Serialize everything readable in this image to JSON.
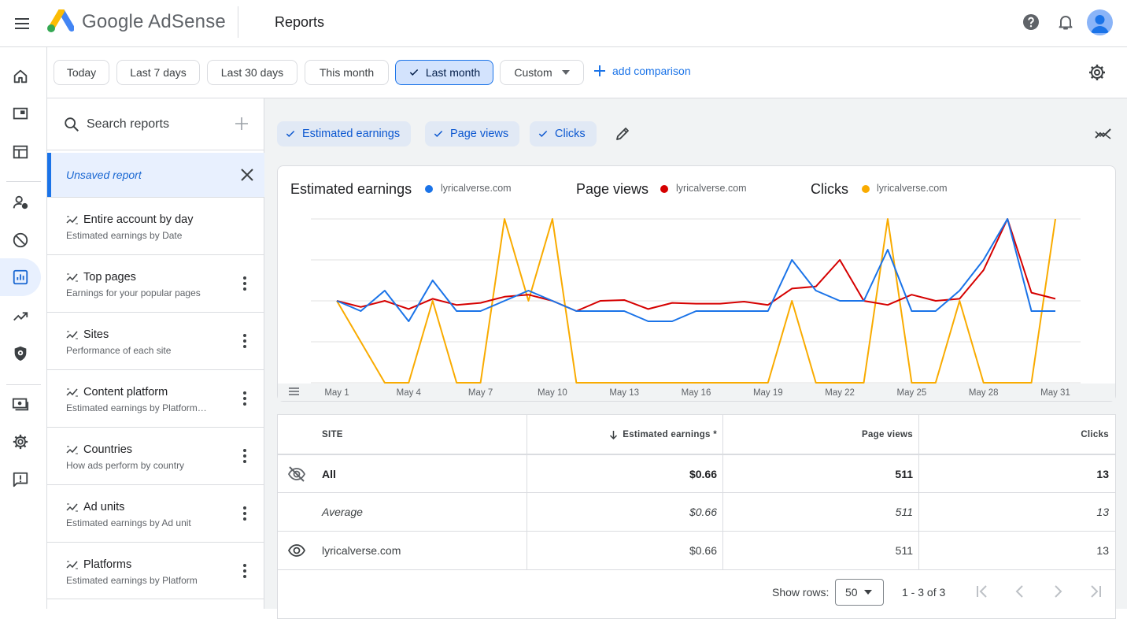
{
  "header": {
    "brand": "Google AdSense",
    "page_title": "Reports"
  },
  "rail": [
    "home-icon",
    "ads-icon",
    "sites-icon",
    "privacy-messaging-icon",
    "blocking-controls-icon",
    "reports-icon",
    "optimization-icon",
    "policy-center-icon",
    "payments-icon",
    "settings-icon",
    "feedback-icon"
  ],
  "filters": {
    "chips": [
      "Today",
      "Last 7 days",
      "Last 30 days",
      "This month",
      "Last month"
    ],
    "selected": "Last month",
    "custom_label": "Custom",
    "add_comparison": "add comparison"
  },
  "sidebar": {
    "search_placeholder": "Search reports",
    "unsaved": "Unsaved report",
    "reports": [
      {
        "title": "Entire account by day",
        "subtitle": "Estimated earnings by Date"
      },
      {
        "title": "Top pages",
        "subtitle": "Earnings for your popular pages"
      },
      {
        "title": "Sites",
        "subtitle": "Performance of each site"
      },
      {
        "title": "Content platform",
        "subtitle": "Estimated earnings by Platform…"
      },
      {
        "title": "Countries",
        "subtitle": "How ads perform by country"
      },
      {
        "title": "Ad units",
        "subtitle": "Estimated earnings by Ad unit"
      },
      {
        "title": "Platforms",
        "subtitle": "Estimated earnings by Platform"
      }
    ]
  },
  "metric_chips": [
    "Estimated earnings",
    "Page views",
    "Clicks"
  ],
  "chart": {
    "legend": [
      {
        "metric": "Estimated earnings",
        "site": "lyricalverse.com",
        "color": "#1a73e8"
      },
      {
        "metric": "Page views",
        "site": "lyricalverse.com",
        "color": "#d50000"
      },
      {
        "metric": "Clicks",
        "site": "lyricalverse.com",
        "color": "#f9ab00"
      }
    ]
  },
  "chart_data": {
    "type": "line",
    "x_tick_labels": [
      "May 1",
      "May 4",
      "May 7",
      "May 10",
      "May 13",
      "May 16",
      "May 19",
      "May 22",
      "May 25",
      "May 28",
      "May 31"
    ],
    "x": [
      "May 1",
      "May 2",
      "May 3",
      "May 4",
      "May 5",
      "May 6",
      "May 7",
      "May 8",
      "May 9",
      "May 10",
      "May 11",
      "May 12",
      "May 13",
      "May 14",
      "May 15",
      "May 16",
      "May 17",
      "May 18",
      "May 19",
      "May 20",
      "May 21",
      "May 22",
      "May 23",
      "May 24",
      "May 25",
      "May 26",
      "May 27",
      "May 28",
      "May 29",
      "May 30",
      "May 31"
    ],
    "ylim": [
      0,
      4
    ],
    "grid": true,
    "series": [
      {
        "name": "Estimated earnings",
        "color": "#1a73e8",
        "values": [
          2,
          1.75,
          2.25,
          1.5,
          2.5,
          1.75,
          1.75,
          2,
          2.25,
          2,
          1.75,
          1.75,
          1.75,
          1.5,
          1.5,
          1.75,
          1.75,
          1.75,
          1.75,
          3,
          2.25,
          2,
          2,
          3.25,
          1.75,
          1.75,
          2.25,
          3,
          4,
          1.75,
          1.75
        ]
      },
      {
        "name": "Page views",
        "color": "#d50000",
        "values": [
          2,
          1.85,
          2,
          1.8,
          2.05,
          1.9,
          1.95,
          2.1,
          2.15,
          2,
          1.75,
          2,
          2.02,
          1.8,
          1.95,
          1.93,
          1.93,
          1.98,
          1.9,
          2.3,
          2.35,
          3,
          2,
          1.9,
          2.15,
          2,
          2.05,
          2.75,
          4,
          2.2,
          2.05
        ]
      },
      {
        "name": "Clicks",
        "color": "#f9ab00",
        "values": [
          2,
          1,
          0,
          0,
          2,
          0,
          0,
          4,
          2,
          4,
          0,
          0,
          0,
          0,
          0,
          0,
          0,
          0,
          0,
          2,
          0,
          0,
          0,
          4,
          0,
          0,
          2,
          0,
          0,
          0,
          4
        ]
      }
    ]
  },
  "table": {
    "headers": {
      "site": "SITE",
      "earnings": "Estimated earnings *",
      "page_views": "Page views",
      "clicks": "Clicks"
    },
    "rows": [
      {
        "site": "All",
        "earnings": "$0.66",
        "page_views": "511",
        "clicks": "13"
      },
      {
        "site": "Average",
        "earnings": "$0.66",
        "page_views": "511",
        "clicks": "13"
      },
      {
        "site": "lyricalverse.com",
        "earnings": "$0.66",
        "page_views": "511",
        "clicks": "13"
      }
    ],
    "footer": {
      "show_rows_label": "Show rows:",
      "rows_value": "50",
      "range": "1 - 3 of 3"
    }
  }
}
